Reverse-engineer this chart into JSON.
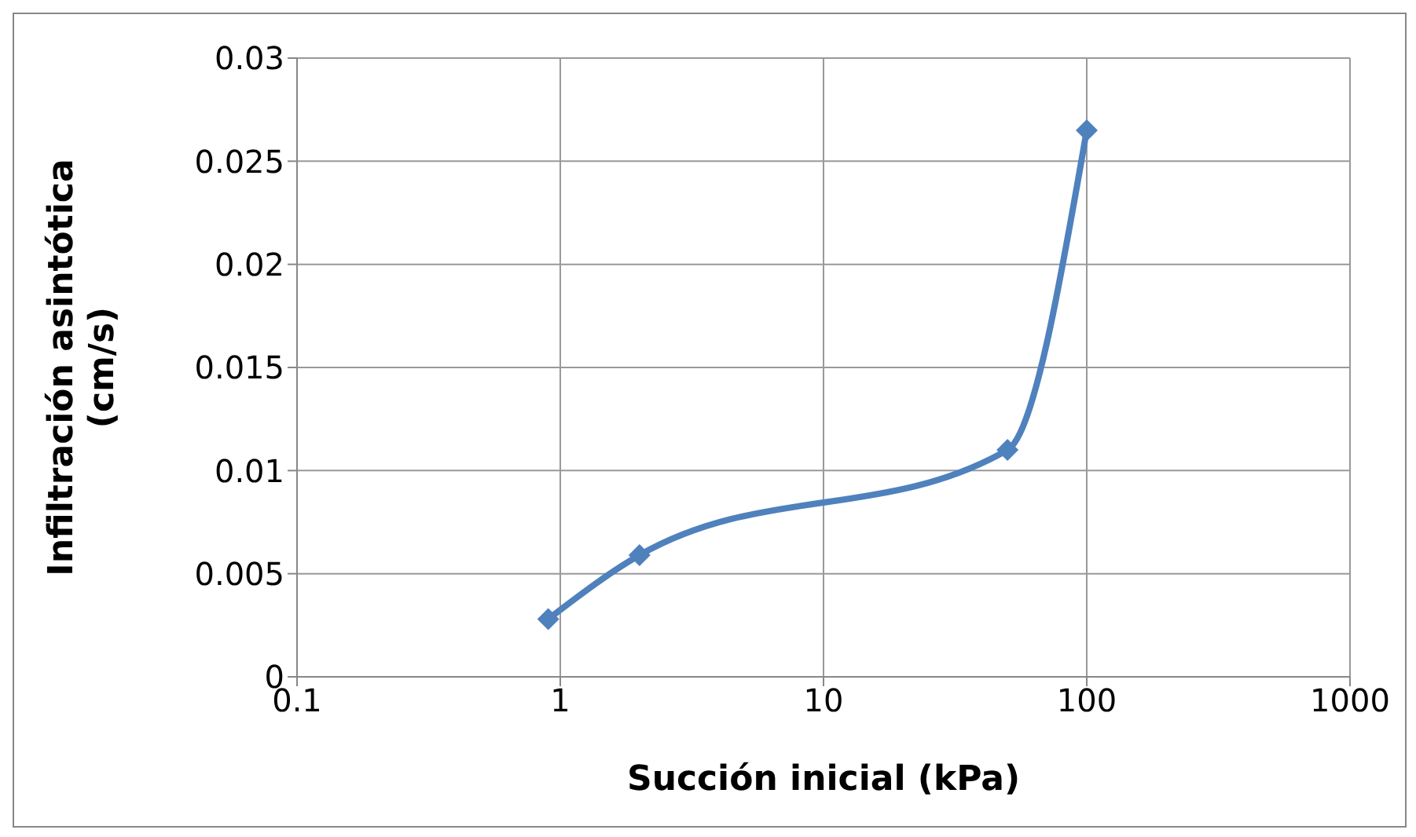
{
  "chart_data": {
    "type": "line",
    "xlabel": "Succión inicial (kPa)",
    "ylabel": "Infiltración asintótica\n(cm/s)",
    "x": [
      0.9,
      2,
      50,
      100
    ],
    "series": [
      {
        "color": "#4f81bd",
        "values": [
          0.0028,
          0.0059,
          0.011,
          0.0265
        ]
      }
    ],
    "log": "x",
    "xlim": [
      0.1,
      1000
    ],
    "xticks": [
      0.1,
      1,
      10,
      100,
      1000
    ],
    "ylim": [
      0,
      0.03
    ],
    "yticks": [
      0,
      0.005,
      0.01,
      0.015,
      0.02,
      0.025,
      0.03
    ],
    "grid": true,
    "marker": "diamond",
    "line_style": "solid"
  }
}
